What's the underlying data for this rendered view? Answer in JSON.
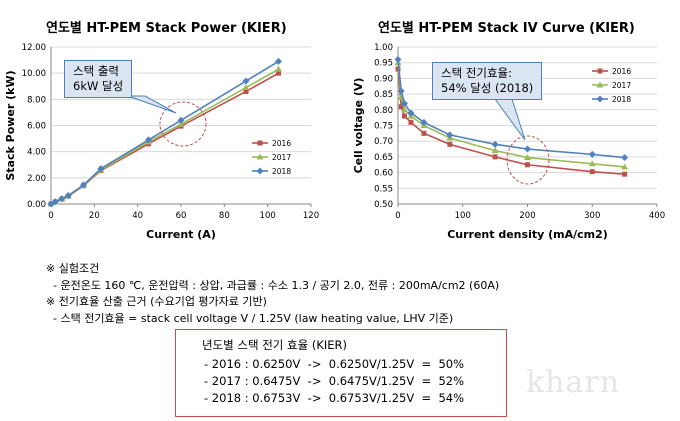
{
  "chart_data": [
    {
      "type": "line",
      "title": "연도별 HT-PEM Stack Power (KIER)",
      "xlabel": "Current (A)",
      "ylabel": "Stack Power (kW)",
      "xlim": [
        0,
        120
      ],
      "ylim": [
        0,
        12
      ],
      "xticks": [
        "0",
        "20",
        "40",
        "60",
        "80",
        "100",
        "120"
      ],
      "yticks": [
        "0.00",
        "2.00",
        "4.00",
        "6.00",
        "8.00",
        "10.00",
        "12.00"
      ],
      "legend_position": "bottom-right",
      "annotation": "스택 출력\n6kW 달성",
      "series": [
        {
          "name": "2016",
          "color": "#c0504d",
          "marker": "square",
          "x": [
            0,
            2,
            5,
            8,
            15,
            23,
            45,
            60,
            90,
            105
          ],
          "y": [
            0.0,
            0.16,
            0.38,
            0.6,
            1.4,
            2.55,
            4.6,
            5.95,
            8.6,
            10.0
          ]
        },
        {
          "name": "2017",
          "color": "#9bbb59",
          "marker": "triangle",
          "x": [
            0,
            2,
            5,
            8,
            15,
            23,
            45,
            60,
            90,
            105
          ],
          "y": [
            0.0,
            0.16,
            0.39,
            0.62,
            1.42,
            2.6,
            4.75,
            6.1,
            8.9,
            10.3
          ]
        },
        {
          "name": "2018",
          "color": "#4f81bd",
          "marker": "diamond",
          "x": [
            0,
            2,
            5,
            8,
            15,
            23,
            45,
            60,
            90,
            105
          ],
          "y": [
            0.0,
            0.17,
            0.4,
            0.65,
            1.45,
            2.7,
            4.9,
            6.4,
            9.4,
            10.9
          ]
        }
      ]
    },
    {
      "type": "line",
      "title": "연도별 HT-PEM Stack IV Curve (KIER)",
      "xlabel": "Current density (mA/cm2)",
      "ylabel": "Cell voltage (V)",
      "xlim": [
        0,
        400
      ],
      "ylim": [
        0.5,
        1.0
      ],
      "xticks": [
        "0",
        "100",
        "200",
        "300",
        "400"
      ],
      "yticks": [
        "0.50",
        "0.55",
        "0.60",
        "0.65",
        "0.70",
        "0.75",
        "0.80",
        "0.85",
        "0.90",
        "0.95",
        "1.00"
      ],
      "legend_position": "top-right",
      "annotation": "스택 전기효율:\n54% 달성 (2018)",
      "series": [
        {
          "name": "2016",
          "color": "#c0504d",
          "marker": "square",
          "x": [
            0,
            5,
            10,
            20,
            40,
            80,
            150,
            200,
            300,
            350
          ],
          "y": [
            0.93,
            0.81,
            0.78,
            0.76,
            0.725,
            0.69,
            0.65,
            0.625,
            0.603,
            0.595
          ]
        },
        {
          "name": "2017",
          "color": "#9bbb59",
          "marker": "triangle",
          "x": [
            0,
            5,
            10,
            20,
            40,
            80,
            150,
            200,
            300,
            350
          ],
          "y": [
            0.95,
            0.84,
            0.8,
            0.78,
            0.75,
            0.71,
            0.67,
            0.648,
            0.628,
            0.618
          ]
        },
        {
          "name": "2018",
          "color": "#4f81bd",
          "marker": "diamond",
          "x": [
            0,
            5,
            10,
            20,
            40,
            80,
            150,
            200,
            300,
            350
          ],
          "y": [
            0.96,
            0.86,
            0.82,
            0.79,
            0.76,
            0.72,
            0.69,
            0.675,
            0.658,
            0.648
          ]
        }
      ]
    }
  ],
  "notes": [
    "※ 실험조건",
    "  - 운전온도 160 ℃, 운전압력 : 상압, 과급률 : 수소 1.3 / 공기 2.0, 전류 : 200mA/cm2 (60A)",
    "※ 전기효율 산출 근거 (수요기업 평가자료 기반)",
    "  - 스택 전기효율 = stack cell voltage V / 1.25V (law heating value, LHV 기준)"
  ],
  "efficiency_box": {
    "title": "년도별 스택 전기 효율 (KIER)",
    "rows": [
      "- 2016 : 0.6250V  ->  0.6250V/1.25V  =  50%",
      "- 2017 : 0.6475V  ->  0.6475V/1.25V  =  52%",
      "- 2018 : 0.6753V  ->  0.6753V/1.25V  =  54%"
    ]
  },
  "watermark": "kharn"
}
